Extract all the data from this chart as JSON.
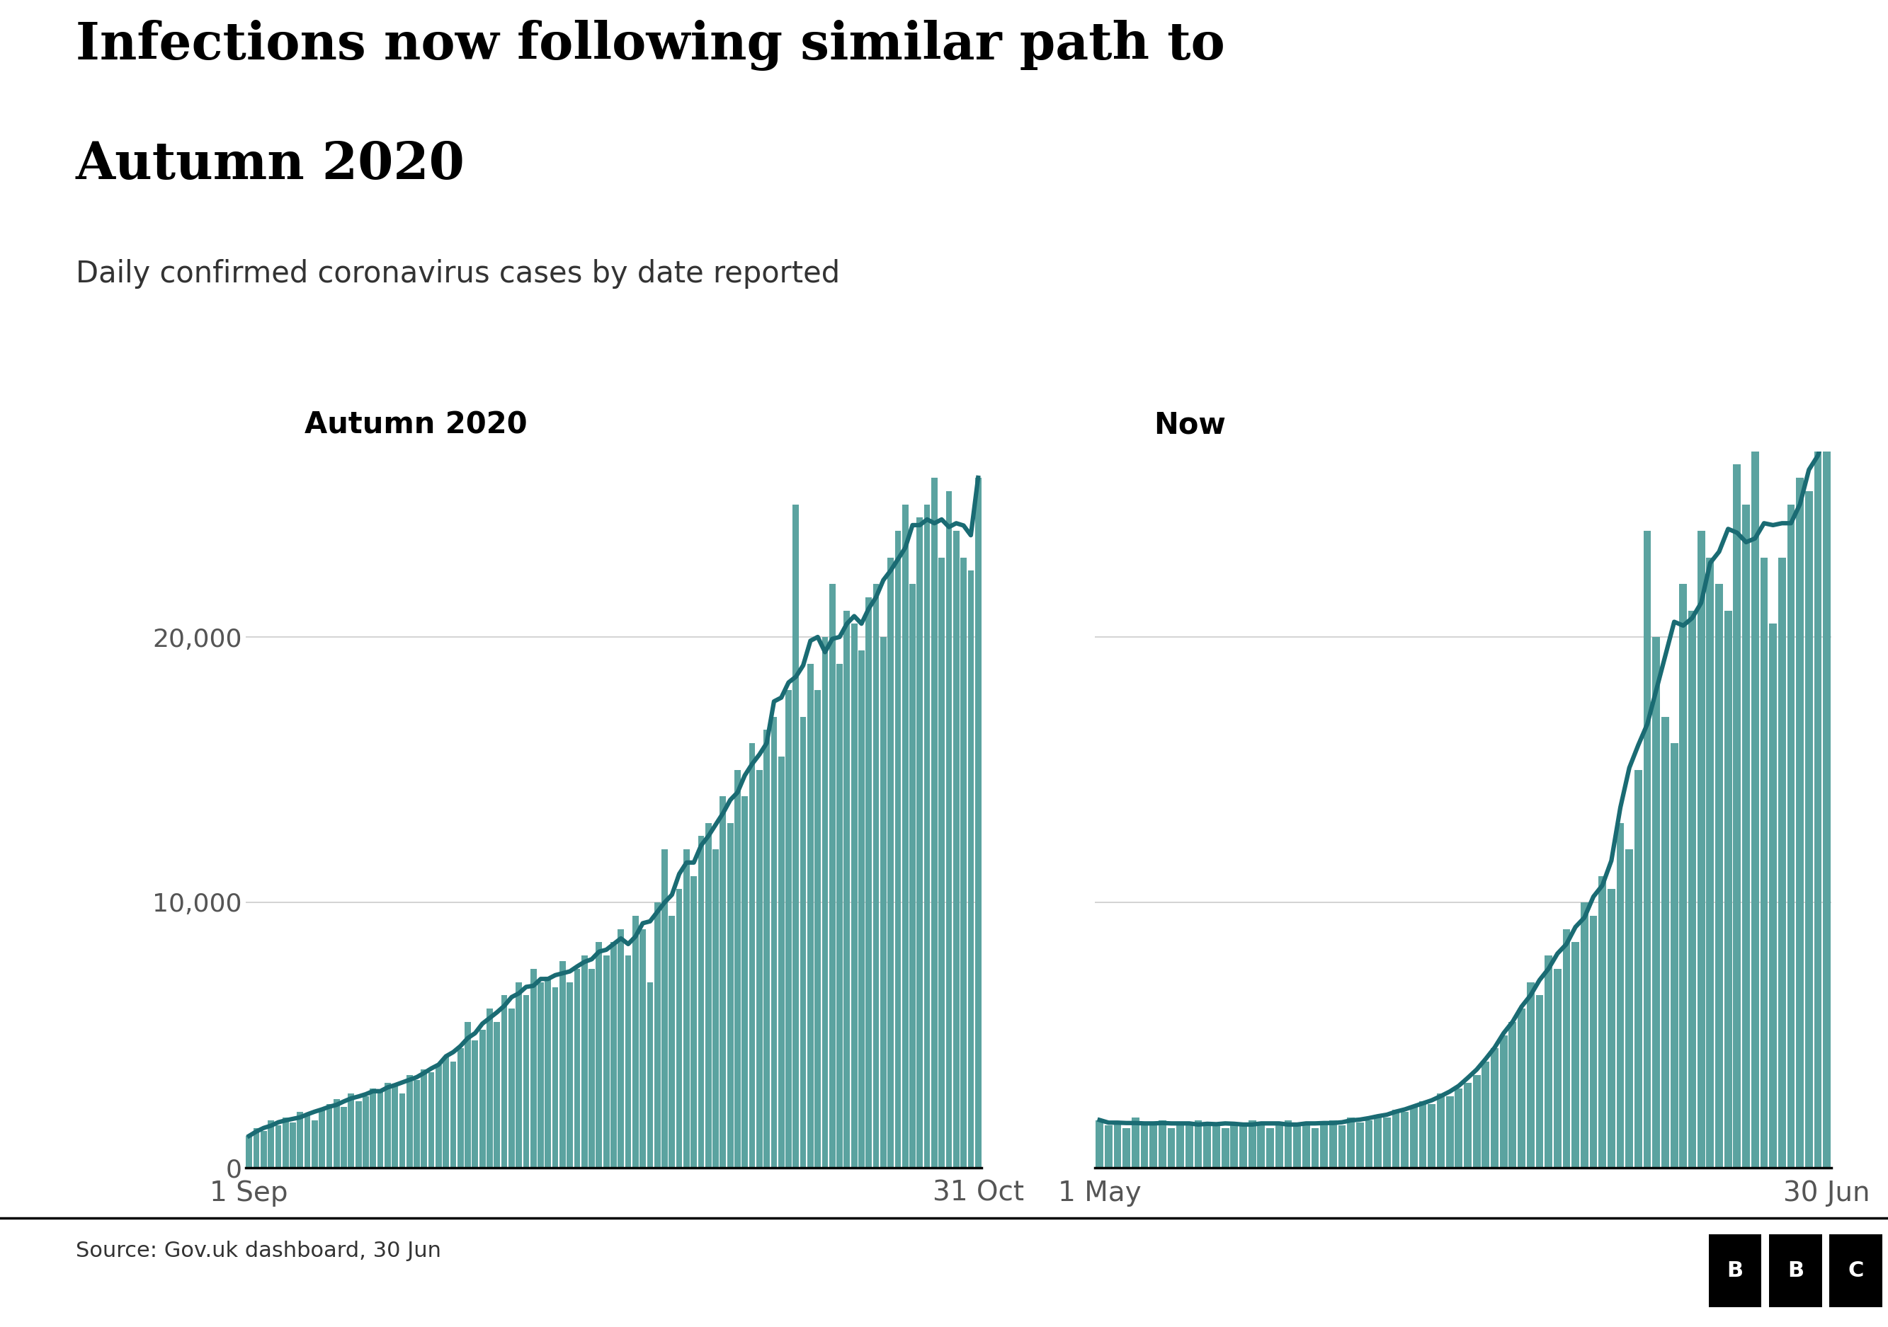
{
  "title_line1": "Infections now following similar path to",
  "title_line2": "Autumn 2020",
  "subtitle": "Daily confirmed coronavirus cases by date reported",
  "source": "Source: Gov.uk dashboard, 30 Jun",
  "left_panel_title": "Autumn 2020",
  "right_panel_title": "Now",
  "left_xlabel_start": "1 Sep",
  "left_xlabel_end": "31 Oct",
  "right_xlabel_start": "1 May",
  "right_xlabel_end": "30 Jun",
  "bar_color": "#5ba3a0",
  "line_color": "#1a6b73",
  "background_color": "#ffffff",
  "yticks": [
    0,
    10000,
    20000
  ],
  "ylim": [
    0,
    27000
  ],
  "title_fontsize": 52,
  "subtitle_fontsize": 30,
  "panel_title_fontsize": 30,
  "tick_fontsize": 26,
  "source_fontsize": 22,
  "autumn_daily": [
    1200,
    1500,
    1400,
    1800,
    1600,
    1900,
    1700,
    2100,
    2000,
    1800,
    2200,
    2400,
    2600,
    2300,
    2800,
    2500,
    2700,
    3000,
    2900,
    3200,
    3100,
    2800,
    3500,
    3300,
    3700,
    3600,
    3900,
    4200,
    4000,
    4500,
    5500,
    4800,
    5200,
    6000,
    5500,
    6500,
    6000,
    7000,
    6500,
    7500,
    7000,
    7200,
    6800,
    7800,
    7000,
    7500,
    8000,
    7500,
    8500,
    8000,
    8500,
    9000,
    8000,
    9500,
    9000,
    7000,
    10000,
    12000,
    9500,
    10500,
    12000,
    11000,
    12500,
    13000,
    12000,
    14000,
    13000,
    15000,
    14000,
    16000,
    15000,
    16500,
    17000,
    15500,
    18000,
    25000,
    17000,
    19000,
    18000,
    20000,
    22000,
    19000,
    21000,
    20500,
    19500,
    21500,
    22000,
    20000,
    23000,
    24000,
    25000,
    22000,
    24500,
    25000,
    26000,
    23000,
    25500,
    24000,
    23000,
    22500,
    26000
  ],
  "now_daily": [
    1800,
    1600,
    1700,
    1500,
    1900,
    1700,
    1600,
    1800,
    1500,
    1700,
    1600,
    1800,
    1700,
    1600,
    1500,
    1700,
    1600,
    1800,
    1700,
    1500,
    1600,
    1800,
    1700,
    1600,
    1500,
    1700,
    1800,
    1600,
    1900,
    1700,
    1800,
    2000,
    1900,
    2200,
    2100,
    2300,
    2500,
    2400,
    2800,
    2700,
    3000,
    3200,
    3500,
    4000,
    4500,
    5000,
    5500,
    6000,
    7000,
    6500,
    8000,
    7500,
    9000,
    8500,
    10000,
    9500,
    11000,
    10500,
    13000,
    12000,
    15000,
    24000,
    20000,
    17000,
    16000,
    22000,
    21000,
    24000,
    23000,
    22000,
    21000,
    26500,
    25000,
    27000,
    23000,
    20500,
    23000,
    25000,
    26000,
    25500,
    27000,
    28000
  ]
}
